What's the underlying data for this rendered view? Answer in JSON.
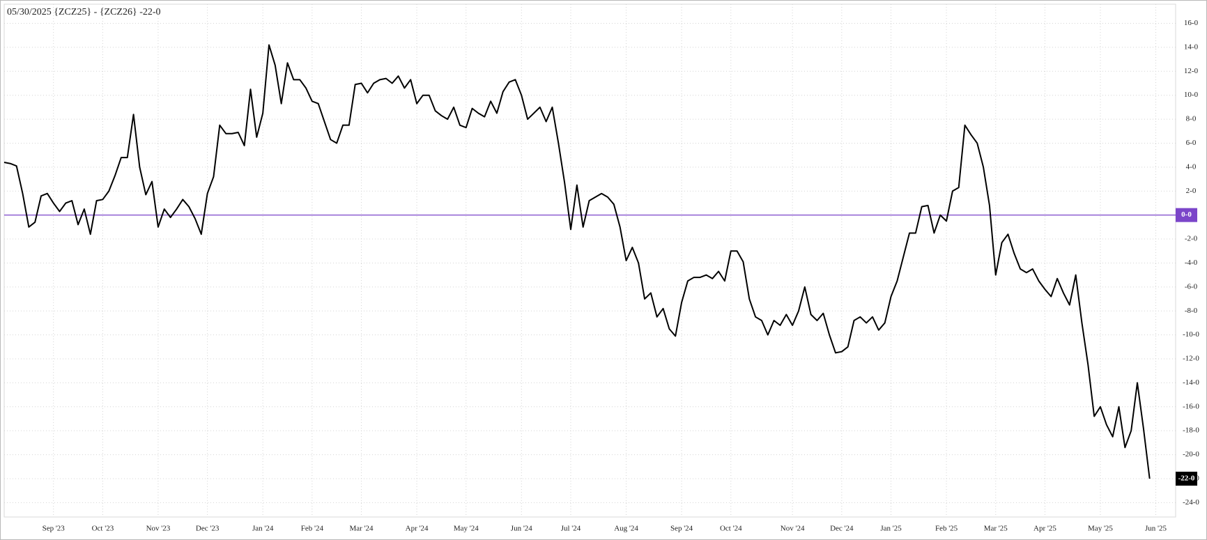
{
  "chart_data": {
    "type": "line",
    "title": "05/30/2025 {ZCZ25} - {ZCZ26} -22-0",
    "categories": [
      null,
      null,
      null,
      null,
      null,
      null,
      null,
      null,
      "Sep '23",
      null,
      null,
      null,
      null,
      null,
      null,
      null,
      "Oct '23",
      null,
      null,
      null,
      null,
      null,
      null,
      null,
      null,
      "Nov '23",
      null,
      null,
      null,
      null,
      null,
      null,
      null,
      "Dec '23",
      null,
      null,
      null,
      null,
      null,
      null,
      null,
      null,
      "Jan '24",
      null,
      null,
      null,
      null,
      null,
      null,
      null,
      "Feb '24",
      null,
      null,
      null,
      null,
      null,
      null,
      null,
      "Mar '24",
      null,
      null,
      null,
      null,
      null,
      null,
      null,
      null,
      "Apr '24",
      null,
      null,
      null,
      null,
      null,
      null,
      null,
      "May '24",
      null,
      null,
      null,
      null,
      null,
      null,
      null,
      null,
      "Jun '24",
      null,
      null,
      null,
      null,
      null,
      null,
      null,
      "Jul '24",
      null,
      null,
      null,
      null,
      null,
      null,
      null,
      null,
      "Aug '24",
      null,
      null,
      null,
      null,
      null,
      null,
      null,
      null,
      "Sep '24",
      null,
      null,
      null,
      null,
      null,
      null,
      null,
      "Oct '24",
      null,
      null,
      null,
      null,
      null,
      null,
      null,
      null,
      null,
      "Nov '24",
      null,
      null,
      null,
      null,
      null,
      null,
      null,
      "Dec '24",
      null,
      null,
      null,
      null,
      null,
      null,
      null,
      "Jan '25",
      null,
      null,
      null,
      null,
      null,
      null,
      null,
      null,
      "Feb '25",
      null,
      null,
      null,
      null,
      null,
      null,
      null,
      "Mar '25",
      null,
      null,
      null,
      null,
      null,
      null,
      null,
      "Apr '25",
      null,
      null,
      null,
      null,
      null,
      null,
      null,
      null,
      "May '25",
      null,
      null,
      null,
      null,
      null,
      null,
      null,
      null,
      "Jun '25"
    ],
    "series": [
      {
        "color": "#000000",
        "values": [
          4.4,
          4.3,
          4.1,
          1.8,
          -1.0,
          -0.6,
          1.6,
          1.8,
          1.0,
          0.3,
          1.0,
          1.2,
          -0.8,
          0.5,
          -1.6,
          1.2,
          1.3,
          2.0,
          3.3,
          4.8,
          4.8,
          8.4,
          4.0,
          1.7,
          2.8,
          -1.0,
          0.5,
          -0.2,
          0.5,
          1.3,
          0.7,
          -0.3,
          -1.6,
          1.8,
          3.2,
          7.5,
          6.8,
          6.8,
          6.9,
          5.8,
          10.5,
          6.5,
          8.5,
          14.2,
          12.5,
          9.3,
          12.7,
          11.3,
          11.3,
          10.6,
          9.5,
          9.3,
          7.8,
          6.3,
          6.0,
          7.5,
          7.5,
          10.9,
          11.0,
          10.2,
          11.0,
          11.3,
          11.4,
          11.0,
          11.6,
          10.6,
          11.3,
          9.3,
          10.0,
          10.0,
          8.7,
          8.3,
          8.0,
          9.0,
          7.5,
          7.3,
          8.9,
          8.5,
          8.2,
          9.5,
          8.5,
          10.3,
          11.1,
          11.3,
          10.0,
          8.0,
          8.5,
          9.0,
          7.8,
          9.0,
          6.0,
          2.7,
          -1.2,
          2.5,
          -1.0,
          1.2,
          1.5,
          1.8,
          1.5,
          0.9,
          -1.0,
          -3.8,
          -2.7,
          -4.0,
          -7.0,
          -6.5,
          -8.5,
          -7.8,
          -9.5,
          -10.1,
          -7.3,
          -5.5,
          -5.2,
          -5.2,
          -5.0,
          -5.3,
          -4.7,
          -5.5,
          -3.0,
          -3.0,
          -3.9,
          -7.0,
          -8.5,
          -8.8,
          -10.0,
          -8.8,
          -9.2,
          -8.3,
          -9.2,
          -8.0,
          -6.0,
          -8.3,
          -8.8,
          -8.2,
          -10.0,
          -11.5,
          -11.4,
          -11.0,
          -8.8,
          -8.5,
          -9.0,
          -8.5,
          -9.6,
          -9.0,
          -6.8,
          -5.5,
          -3.5,
          -1.5,
          -1.5,
          0.7,
          0.8,
          -1.5,
          0.0,
          -0.5,
          2.0,
          2.3,
          7.5,
          6.7,
          6.0,
          4.0,
          0.8,
          -5.0,
          -2.3,
          -1.6,
          -3.2,
          -4.5,
          -4.8,
          -4.5,
          -5.5,
          -6.2,
          -6.8,
          -5.3,
          -6.5,
          -7.5,
          -5.0,
          -9.0,
          -12.5,
          -16.8,
          -16.0,
          -17.5,
          -18.5,
          -16.0,
          -19.4,
          -18.0,
          -14.0,
          -17.8,
          -22.0,
          null
        ],
        "value_labels": [
          null,
          null,
          null,
          null,
          null,
          null,
          null,
          null,
          null,
          null,
          null,
          null,
          null,
          null,
          null,
          null,
          null,
          null,
          null,
          null,
          null,
          null,
          null,
          null,
          null,
          null,
          null,
          null,
          null,
          null,
          null,
          null,
          null,
          null,
          null,
          null,
          null,
          null,
          null,
          null,
          null,
          null,
          null,
          null,
          null,
          null,
          null,
          null,
          null,
          null,
          null,
          null,
          null,
          null,
          null,
          null,
          null,
          null,
          null,
          null,
          null,
          null,
          null,
          null,
          null,
          null,
          null,
          null,
          null,
          null,
          null,
          null,
          null,
          null,
          null,
          null,
          null,
          null,
          null,
          null,
          null,
          null,
          null,
          null,
          null,
          null,
          null,
          null,
          null,
          null,
          null,
          null,
          null,
          null,
          null,
          null,
          null,
          null,
          null,
          null,
          null,
          null,
          null,
          null,
          null,
          null,
          null,
          null,
          null,
          null,
          null,
          null,
          null,
          null,
          null,
          null,
          null,
          null,
          null,
          null,
          null,
          null,
          null,
          null,
          null,
          null,
          null,
          null,
          null,
          null,
          null,
          null,
          null,
          null,
          null,
          null,
          null,
          null,
          null,
          null,
          null,
          null,
          null,
          null,
          null,
          null,
          null,
          null,
          null,
          null,
          null,
          null,
          null,
          null,
          null,
          null,
          null,
          null,
          null,
          null,
          null,
          null,
          null,
          null,
          null,
          null,
          null,
          null,
          null,
          null,
          null,
          null,
          null,
          null,
          null,
          null,
          null,
          null,
          null,
          null,
          null,
          null,
          null,
          null,
          null,
          null,
          "-22-0",
          null
        ]
      }
    ],
    "ylim": [
      -25.2,
      17.6
    ],
    "yticks": [
      {
        "value": 16,
        "label": "16-0"
      },
      {
        "value": 14,
        "label": "14-0"
      },
      {
        "value": 12,
        "label": "12-0"
      },
      {
        "value": 10,
        "label": "10-0"
      },
      {
        "value": 8,
        "label": "8-0"
      },
      {
        "value": 6,
        "label": "6-0"
      },
      {
        "value": 4,
        "label": "4-0"
      },
      {
        "value": 2,
        "label": "2-0"
      },
      {
        "value": -2,
        "label": "-2-0"
      },
      {
        "value": -4,
        "label": "-4-0"
      },
      {
        "value": -6,
        "label": "-6-0"
      },
      {
        "value": -8,
        "label": "-8-0"
      },
      {
        "value": -10,
        "label": "-10-0"
      },
      {
        "value": -12,
        "label": "-12-0"
      },
      {
        "value": -14,
        "label": "-14-0"
      },
      {
        "value": -16,
        "label": "-16-0"
      },
      {
        "value": -18,
        "label": "-18-0"
      },
      {
        "value": -20,
        "label": "-20-0"
      },
      {
        "value": -22,
        "label": "-22-0"
      },
      {
        "value": -24,
        "label": "-24-0"
      }
    ],
    "reference_line": {
      "value": 0,
      "label": "0-0",
      "color": "#7b45c9"
    },
    "grid": true,
    "y_axis_side": "right"
  }
}
